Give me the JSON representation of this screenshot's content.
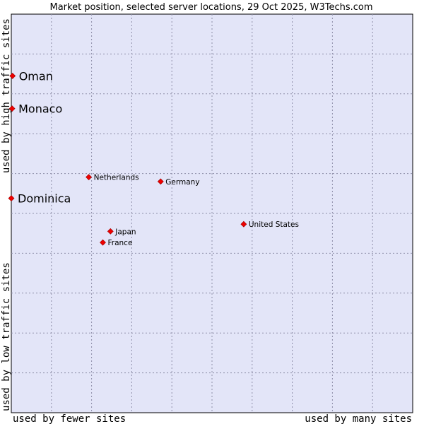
{
  "chart_data": {
    "type": "scatter",
    "title": "Market position, selected server locations, 29 Oct 2025, W3Techs.com",
    "xlabel_low": "used by fewer sites",
    "xlabel_high": "used by many sites",
    "ylabel_low": "used by low traffic sites",
    "ylabel_high": "used by high traffic sites",
    "xlim": [
      0,
      100
    ],
    "ylim": [
      0,
      100
    ],
    "grid": true,
    "colors": {
      "plot_bg": "#e3e5f8",
      "frame": "#000000",
      "point": "#ee0000"
    },
    "points": [
      {
        "name": "Oman",
        "x": 0.3,
        "y": 84.5,
        "emphasis": true
      },
      {
        "name": "Monaco",
        "x": 0.2,
        "y": 76.3,
        "emphasis": true
      },
      {
        "name": "Dominica",
        "x": 0.0,
        "y": 53.8,
        "emphasis": true
      },
      {
        "name": "Netherlands",
        "x": 19.3,
        "y": 59.1,
        "emphasis": false
      },
      {
        "name": "Germany",
        "x": 37.2,
        "y": 58.0,
        "emphasis": false
      },
      {
        "name": "United States",
        "x": 57.9,
        "y": 47.3,
        "emphasis": false
      },
      {
        "name": "Japan",
        "x": 24.7,
        "y": 45.5,
        "emphasis": false
      },
      {
        "name": "France",
        "x": 22.8,
        "y": 42.7,
        "emphasis": false
      }
    ]
  }
}
